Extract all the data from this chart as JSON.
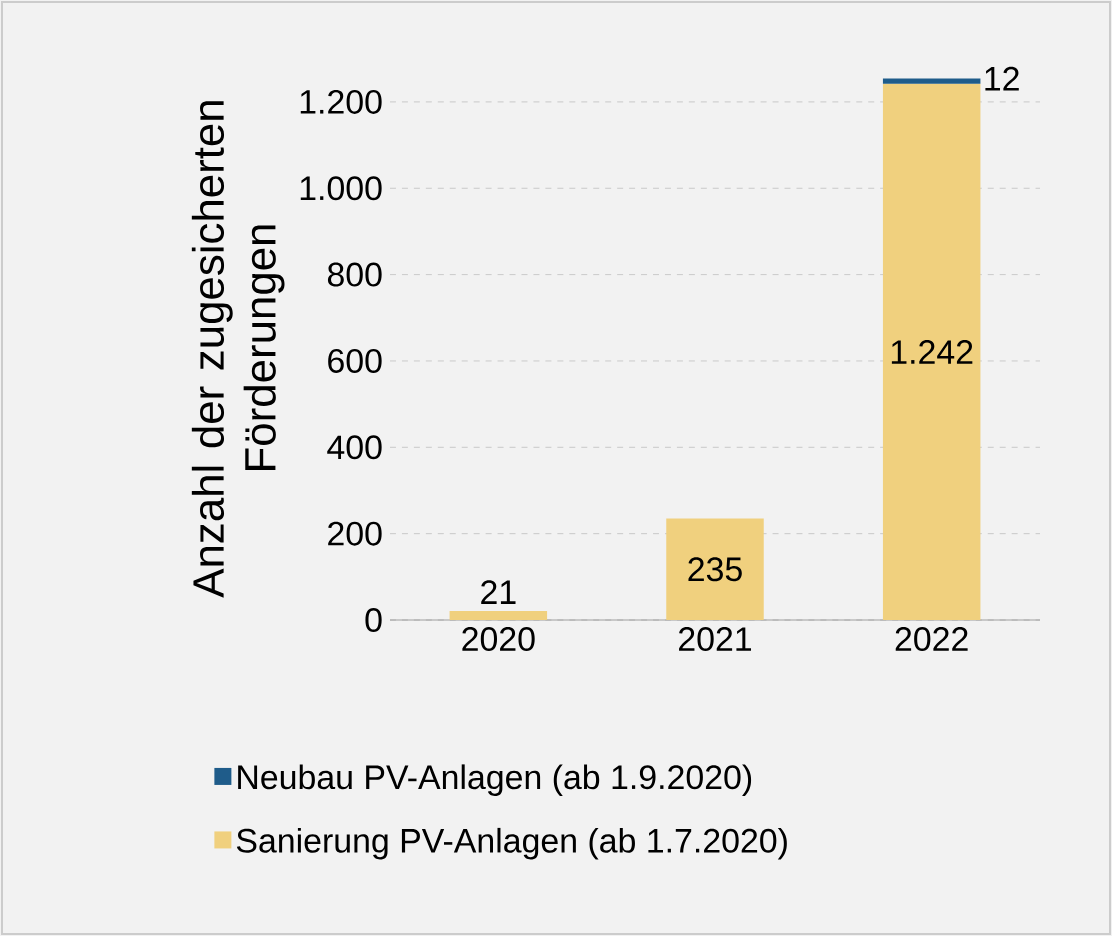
{
  "chart_data": {
    "type": "bar",
    "stacked": true,
    "ylabel": "Anzahl der zugesicherten Förderungen",
    "categories": [
      "2020",
      "2021",
      "2022"
    ],
    "series": [
      {
        "name": "Sanierung PV-Anlagen (ab 1.7.2020)",
        "color": "#f0d07e",
        "values": [
          21,
          235,
          1242
        ],
        "value_labels": [
          "21",
          "235",
          "1.242"
        ]
      },
      {
        "name": "Neubau PV-Anlagen (ab 1.9.2020)",
        "color": "#1f5c8a",
        "values": [
          null,
          null,
          12
        ],
        "value_labels": [
          null,
          null,
          "12"
        ]
      }
    ],
    "ylim": [
      0,
      1260
    ],
    "yticks": [
      0,
      200,
      400,
      600,
      800,
      {
        "value": 1000,
        "label": "1.000"
      },
      {
        "value": 1200,
        "label": "1.200"
      }
    ],
    "grid": "y",
    "legend": "bottom"
  }
}
